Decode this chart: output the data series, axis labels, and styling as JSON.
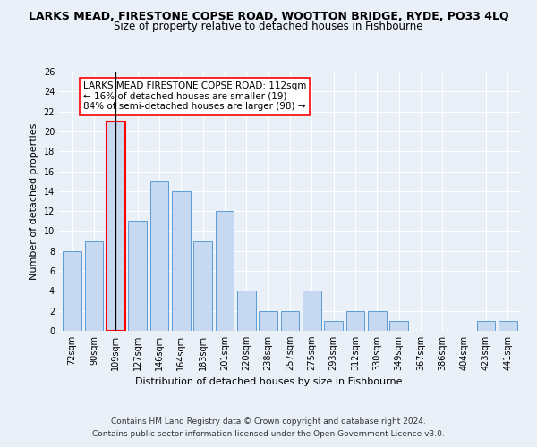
{
  "title": "LARKS MEAD, FIRESTONE COPSE ROAD, WOOTTON BRIDGE, RYDE, PO33 4LQ",
  "subtitle": "Size of property relative to detached houses in Fishbourne",
  "xlabel": "Distribution of detached houses by size in Fishbourne",
  "ylabel": "Number of detached properties",
  "categories": [
    "72sqm",
    "90sqm",
    "109sqm",
    "127sqm",
    "146sqm",
    "164sqm",
    "183sqm",
    "201sqm",
    "220sqm",
    "238sqm",
    "257sqm",
    "275sqm",
    "293sqm",
    "312sqm",
    "330sqm",
    "349sqm",
    "367sqm",
    "386sqm",
    "404sqm",
    "423sqm",
    "441sqm"
  ],
  "values": [
    8,
    9,
    21,
    11,
    15,
    14,
    9,
    12,
    4,
    2,
    2,
    4,
    1,
    2,
    2,
    1,
    0,
    0,
    0,
    1,
    1
  ],
  "bar_color": "#c6d9f0",
  "bar_edge_color": "#5b9bd5",
  "highlight_bar_index": 2,
  "highlight_bar_edge_color": "#ff0000",
  "highlight_line_color": "#000000",
  "annotation_text": "LARKS MEAD FIRESTONE COPSE ROAD: 112sqm\n← 16% of detached houses are smaller (19)\n84% of semi-detached houses are larger (98) →",
  "annotation_box_edge_color": "#ff0000",
  "ylim": [
    0,
    26
  ],
  "yticks": [
    0,
    2,
    4,
    6,
    8,
    10,
    12,
    14,
    16,
    18,
    20,
    22,
    24,
    26
  ],
  "footer_line1": "Contains HM Land Registry data © Crown copyright and database right 2024.",
  "footer_line2": "Contains public sector information licensed under the Open Government Licence v3.0.",
  "background_color": "#eaf0f8",
  "axes_background_color": "#eaf0f8",
  "title_fontsize": 9,
  "subtitle_fontsize": 8.5,
  "label_fontsize": 8,
  "tick_fontsize": 7,
  "footer_fontsize": 6.5,
  "annotation_fontsize": 7.5
}
